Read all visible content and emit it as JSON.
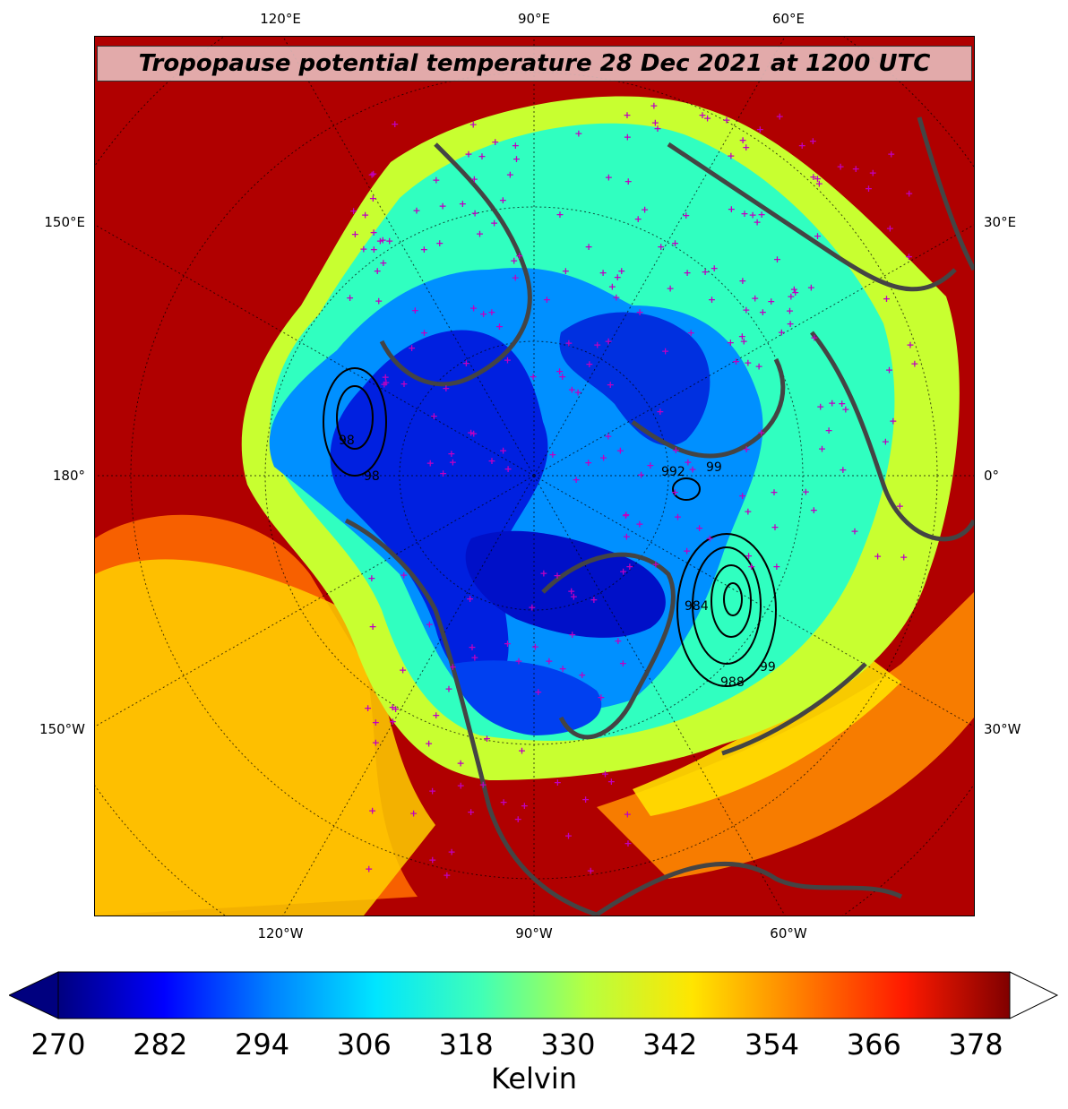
{
  "title": "Tropopause potential temperature 28 Dec 2021 at 1200 UTC",
  "ticks": {
    "top": [
      "120°E",
      "90°E",
      "60°E"
    ],
    "bottom": [
      "120°W",
      "90°W",
      "60°W"
    ],
    "left": [
      "150°E",
      "180°",
      "150°W"
    ],
    "right": [
      "30°E",
      "0°",
      "30°W"
    ]
  },
  "pressure_contour_labels": [
    "992",
    "99",
    "98",
    "984",
    "98",
    "988",
    "99"
  ],
  "colorbar": {
    "label": "Kelvin",
    "ticks": [
      "270",
      "282",
      "294",
      "306",
      "318",
      "330",
      "342",
      "354",
      "366",
      "378"
    ],
    "colors": [
      "#00007f",
      "#0000ff",
      "#0080ff",
      "#00e5ff",
      "#40ffb7",
      "#b7ff40",
      "#ffe500",
      "#ff8000",
      "#ff1a00",
      "#800000"
    ]
  },
  "colors": {
    "ocean_warm": "#9b0000",
    "coastline": "#444444",
    "station_marker": "#c000c0"
  }
}
